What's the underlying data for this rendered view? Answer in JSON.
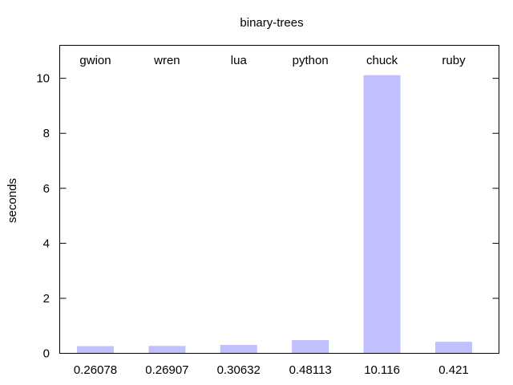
{
  "chart_data": {
    "type": "bar",
    "title": "binary-trees",
    "xlabel": "",
    "ylabel": "seconds",
    "categories": [
      "gwion",
      "wren",
      "lua",
      "python",
      "chuck",
      "ruby"
    ],
    "values": [
      0.26078,
      0.26907,
      0.30632,
      0.48113,
      10.116,
      0.421
    ],
    "value_labels": [
      "0.26078",
      "0.26907",
      "0.30632",
      "0.48113",
      "10.116",
      "0.421"
    ],
    "ylim": [
      0,
      11.2
    ],
    "yticks": [
      0,
      2,
      4,
      6,
      8,
      10
    ],
    "ytick_labels": [
      "0",
      "2",
      "4",
      "6",
      "8",
      "10"
    ],
    "grid": false,
    "legend": "none",
    "bar_color": "#c0c0ff",
    "category_label_position": "top",
    "value_label_position": "bottom"
  }
}
